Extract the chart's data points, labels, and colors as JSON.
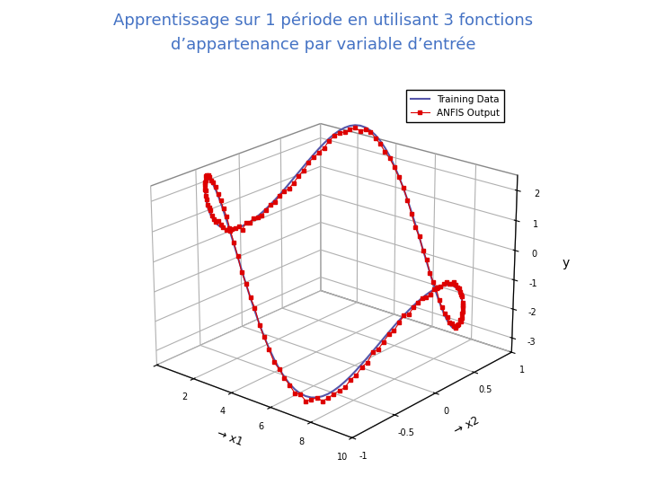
{
  "title_line1": "Apprentissage sur 1 période en utilisant 3 fonctions",
  "title_line2": "d’appartenance par variable d’entrée",
  "title_color": "#4472C4",
  "background_color": "#ffffff",
  "xlabel": "x1",
  "ylabel": "x2",
  "zlabel": "y",
  "legend_labels": [
    "Training Data",
    "ANFIS Output"
  ],
  "training_color": "#5555aa",
  "anfis_color": "#dd0000",
  "n_points": 150,
  "elev": 22,
  "azim": -50
}
